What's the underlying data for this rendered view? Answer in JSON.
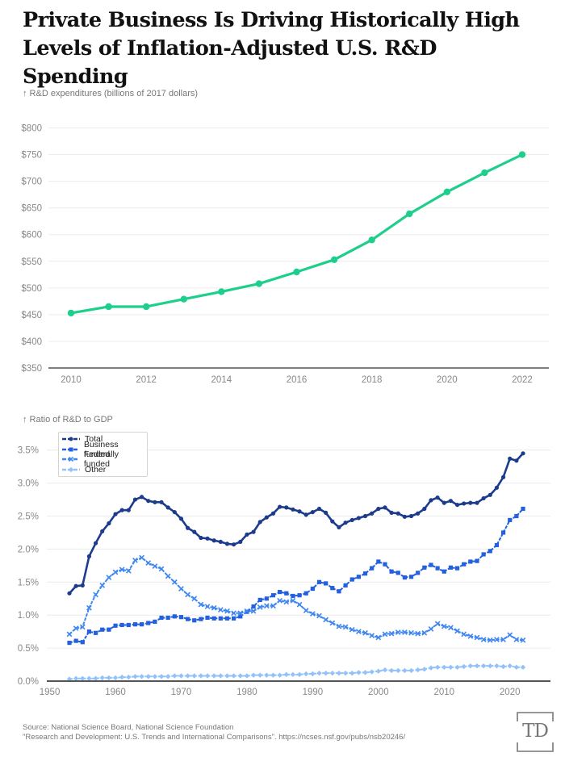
{
  "title": "Private Business Is Driving Historically High Levels of Inflation-Adjusted U.S. R&D Spending",
  "source_line1": "Source: National Science Board, National Science Foundation",
  "source_line2": "\"Research and Development: U.S. Trends and International Comparisons\". https://ncses.nsf.gov/pubs/nsb20246/",
  "logo_text": "TD",
  "colors": {
    "green": "#1ecf8c",
    "total": "#1c3b8c",
    "business": "#2360e0",
    "federal": "#3d86f2",
    "other": "#93c2fb",
    "grid": "#ececec",
    "axis": "#555555"
  },
  "chart_data": [
    {
      "type": "line",
      "title": "",
      "ylabel": "↑ R&D expenditures (billions of 2017 dollars)",
      "xlabel": "",
      "ylim": [
        350,
        800
      ],
      "yticks": [
        350,
        400,
        450,
        500,
        550,
        600,
        650,
        700,
        750,
        800
      ],
      "ytick_labels": [
        "$350",
        "$400",
        "$450",
        "$500",
        "$550",
        "$600",
        "$650",
        "$700",
        "$750",
        "$800"
      ],
      "xticks": [
        2010,
        2012,
        2014,
        2016,
        2018,
        2020,
        2022
      ],
      "xtick_labels": [
        "2010",
        "2012",
        "2014",
        "2016",
        "2018",
        "2020",
        "2022"
      ],
      "xlim": [
        2009.4,
        2022.7
      ],
      "grid": true,
      "x": [
        2010,
        2011,
        2012,
        2013,
        2014,
        2015,
        2016,
        2017,
        2018,
        2019,
        2020,
        2021,
        2022
      ],
      "series": [
        {
          "name": "R&D expenditures",
          "values": [
            453,
            465,
            465,
            479,
            493,
            508,
            530,
            553,
            590,
            639,
            680,
            716,
            750
          ]
        }
      ]
    },
    {
      "type": "line",
      "title": "",
      "ylabel": "↑ Ratio of R&D to GDP",
      "xlabel": "",
      "ylim": [
        0,
        3.7
      ],
      "yticks": [
        0,
        0.5,
        1.0,
        1.5,
        2.0,
        2.5,
        3.0,
        3.5
      ],
      "ytick_labels": [
        "0.0%",
        "0.5%",
        "1.0%",
        "1.5%",
        "2.0%",
        "2.5%",
        "3.0%",
        "3.5%"
      ],
      "xticks": [
        1950,
        1960,
        1970,
        1980,
        1990,
        2000,
        2010,
        2020
      ],
      "xtick_labels": [
        "1950",
        "1960",
        "1970",
        "1980",
        "1990",
        "2000",
        "2010",
        "2020"
      ],
      "xlim": [
        1949.5,
        2025.7
      ],
      "grid": true,
      "legend_position": "top-left",
      "x_start": 1953,
      "x_end": 2022,
      "series": [
        {
          "name": "Total",
          "marker": "circle",
          "values": [
            1.33,
            1.44,
            1.45,
            1.89,
            2.09,
            2.27,
            2.39,
            2.53,
            2.59,
            2.59,
            2.75,
            2.79,
            2.73,
            2.71,
            2.71,
            2.63,
            2.56,
            2.46,
            2.32,
            2.26,
            2.17,
            2.16,
            2.13,
            2.11,
            2.08,
            2.07,
            2.11,
            2.22,
            2.26,
            2.41,
            2.48,
            2.54,
            2.64,
            2.63,
            2.6,
            2.57,
            2.52,
            2.56,
            2.61,
            2.55,
            2.42,
            2.33,
            2.4,
            2.44,
            2.47,
            2.5,
            2.54,
            2.61,
            2.63,
            2.55,
            2.54,
            2.49,
            2.5,
            2.54,
            2.61,
            2.74,
            2.78,
            2.7,
            2.73,
            2.67,
            2.69,
            2.7,
            2.7,
            2.77,
            2.82,
            2.93,
            3.09,
            3.37,
            3.34,
            3.45
          ]
        },
        {
          "name": "Business funded",
          "marker": "square",
          "values": [
            0.58,
            0.61,
            0.59,
            0.75,
            0.73,
            0.78,
            0.78,
            0.84,
            0.85,
            0.85,
            0.86,
            0.86,
            0.88,
            0.9,
            0.96,
            0.96,
            0.98,
            0.97,
            0.94,
            0.92,
            0.94,
            0.96,
            0.95,
            0.95,
            0.95,
            0.95,
            0.98,
            1.05,
            1.13,
            1.23,
            1.25,
            1.3,
            1.35,
            1.33,
            1.29,
            1.3,
            1.33,
            1.4,
            1.5,
            1.48,
            1.41,
            1.36,
            1.45,
            1.54,
            1.58,
            1.63,
            1.71,
            1.81,
            1.77,
            1.66,
            1.64,
            1.57,
            1.58,
            1.64,
            1.72,
            1.76,
            1.71,
            1.66,
            1.72,
            1.71,
            1.77,
            1.81,
            1.82,
            1.92,
            1.97,
            2.06,
            2.25,
            2.44,
            2.5,
            2.61
          ]
        },
        {
          "name": "Federally funded",
          "marker": "x",
          "values": [
            0.71,
            0.8,
            0.82,
            1.11,
            1.31,
            1.45,
            1.57,
            1.65,
            1.69,
            1.67,
            1.83,
            1.87,
            1.79,
            1.74,
            1.7,
            1.59,
            1.5,
            1.4,
            1.31,
            1.25,
            1.16,
            1.13,
            1.11,
            1.08,
            1.06,
            1.03,
            1.03,
            1.06,
            1.06,
            1.12,
            1.14,
            1.14,
            1.22,
            1.2,
            1.22,
            1.16,
            1.07,
            1.02,
            0.99,
            0.93,
            0.88,
            0.83,
            0.82,
            0.78,
            0.75,
            0.73,
            0.69,
            0.66,
            0.71,
            0.72,
            0.74,
            0.74,
            0.73,
            0.72,
            0.73,
            0.79,
            0.87,
            0.83,
            0.81,
            0.76,
            0.71,
            0.68,
            0.66,
            0.63,
            0.62,
            0.63,
            0.63,
            0.7,
            0.63,
            0.62
          ]
        },
        {
          "name": "Other",
          "marker": "diamond",
          "values": [
            0.03,
            0.04,
            0.04,
            0.04,
            0.04,
            0.05,
            0.05,
            0.05,
            0.06,
            0.06,
            0.07,
            0.07,
            0.07,
            0.07,
            0.07,
            0.07,
            0.08,
            0.08,
            0.08,
            0.08,
            0.08,
            0.08,
            0.08,
            0.08,
            0.08,
            0.08,
            0.08,
            0.08,
            0.09,
            0.09,
            0.09,
            0.09,
            0.09,
            0.1,
            0.1,
            0.1,
            0.11,
            0.11,
            0.12,
            0.12,
            0.12,
            0.12,
            0.12,
            0.12,
            0.13,
            0.13,
            0.14,
            0.15,
            0.17,
            0.16,
            0.16,
            0.16,
            0.16,
            0.17,
            0.18,
            0.2,
            0.21,
            0.21,
            0.21,
            0.21,
            0.22,
            0.23,
            0.23,
            0.23,
            0.23,
            0.23,
            0.22,
            0.23,
            0.21,
            0.21
          ]
        }
      ]
    }
  ]
}
